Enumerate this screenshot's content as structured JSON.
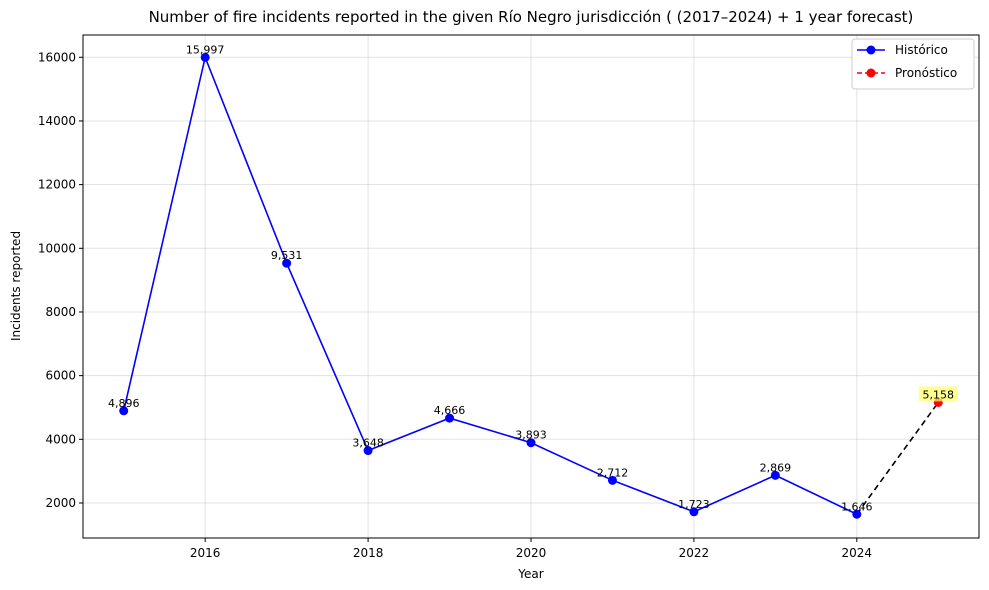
{
  "chart_data": {
    "type": "line",
    "title": "Number of fire incidents reported in the given Río Negro jurisdicción  ( (2017–2024)  + 1 year forecast)",
    "xlabel": "Year",
    "ylabel": "Incidents reported",
    "xlim": [
      2014.5,
      2025.5
    ],
    "ylim": [
      900,
      16700
    ],
    "x_ticks": [
      2016,
      2018,
      2020,
      2022,
      2024
    ],
    "y_ticks": [
      2000,
      4000,
      6000,
      8000,
      10000,
      12000,
      14000,
      16000
    ],
    "grid": true,
    "legend_position": "top-right",
    "series": [
      {
        "name": "Histórico",
        "color": "#0000ff",
        "line_style": "solid",
        "x": [
          2015,
          2016,
          2017,
          2018,
          2019,
          2020,
          2021,
          2022,
          2023,
          2024
        ],
        "y": [
          4896,
          15997,
          9531,
          3648,
          4666,
          3893,
          2712,
          1723,
          2869,
          1646
        ],
        "labels": [
          "4,896",
          "15,997",
          "9,531",
          "3,648",
          "4,666",
          "3,893",
          "2,712",
          "1,723",
          "2,869",
          "1,646"
        ]
      },
      {
        "name": "Pronóstico",
        "color": "#ff0000",
        "line_style": "dashed",
        "x": [
          2025
        ],
        "y": [
          5158
        ],
        "labels": [
          "5,158"
        ],
        "label_highlight": "#ffff66"
      }
    ],
    "connector": {
      "from": [
        2024,
        1646
      ],
      "to": [
        2025,
        5158
      ],
      "color": "#000000",
      "line_style": "dashed"
    }
  }
}
